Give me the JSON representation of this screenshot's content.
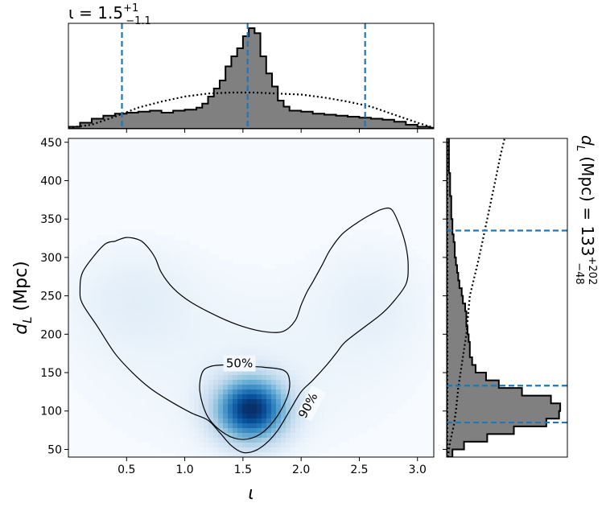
{
  "chart_data": [
    {
      "panel": "joint",
      "type": "heatmap",
      "xlabel": "ι",
      "ylabel_main": "d",
      "ylabel_sub": "L",
      "ylabel_unit": " (Mpc)",
      "xlim": [
        0.0,
        3.14
      ],
      "ylim": [
        40,
        455
      ],
      "xticks": [
        0.5,
        1.0,
        1.5,
        2.0,
        2.5,
        3.0
      ],
      "xticklabels": [
        "0.5",
        "1.0",
        "1.5",
        "2.0",
        "2.5",
        "3.0"
      ],
      "yticks": [
        50,
        100,
        150,
        200,
        250,
        300,
        350,
        400,
        450
      ],
      "yticklabels": [
        "50",
        "100",
        "150",
        "200",
        "250",
        "300",
        "350",
        "400",
        "450"
      ],
      "colormap": "Blues",
      "density_peaks": [
        {
          "x": 1.57,
          "y": 102,
          "weight": 1.0
        },
        {
          "x": 0.55,
          "y": 235,
          "weight": 0.07
        },
        {
          "x": 2.6,
          "y": 235,
          "weight": 0.07
        }
      ],
      "contours": [
        {
          "label": "50%",
          "label_pos": [
            1.47,
            162
          ],
          "label_angle": 0,
          "points": [
            [
              1.32,
              160
            ],
            [
              1.55,
              158
            ],
            [
              1.68,
              157
            ],
            [
              1.85,
              153
            ],
            [
              1.9,
              140
            ],
            [
              1.88,
              118
            ],
            [
              1.78,
              90
            ],
            [
              1.65,
              70
            ],
            [
              1.5,
              63
            ],
            [
              1.35,
              70
            ],
            [
              1.2,
              92
            ],
            [
              1.13,
              125
            ],
            [
              1.15,
              150
            ],
            [
              1.22,
              158
            ],
            [
              1.32,
              160
            ]
          ]
        },
        {
          "label": "90%",
          "label_pos": [
            2.09,
            110
          ],
          "label_angle": -62,
          "points": [
            [
              0.4,
              321
            ],
            [
              0.5,
              326
            ],
            [
              0.62,
              322
            ],
            [
              0.7,
              310
            ],
            [
              0.75,
              298
            ],
            [
              0.8,
              280
            ],
            [
              0.9,
              260
            ],
            [
              1.05,
              242
            ],
            [
              1.3,
              222
            ],
            [
              1.5,
              210
            ],
            [
              1.7,
              203
            ],
            [
              1.85,
              204
            ],
            [
              1.95,
              218
            ],
            [
              2.0,
              238
            ],
            [
              2.05,
              255
            ],
            [
              2.1,
              268
            ],
            [
              2.18,
              290
            ],
            [
              2.25,
              310
            ],
            [
              2.35,
              330
            ],
            [
              2.48,
              345
            ],
            [
              2.6,
              356
            ],
            [
              2.7,
              363
            ],
            [
              2.78,
              362
            ],
            [
              2.85,
              340
            ],
            [
              2.9,
              315
            ],
            [
              2.92,
              290
            ],
            [
              2.9,
              265
            ],
            [
              2.78,
              240
            ],
            [
              2.68,
              225
            ],
            [
              2.55,
              210
            ],
            [
              2.38,
              190
            ],
            [
              2.3,
              175
            ],
            [
              2.22,
              160
            ],
            [
              2.1,
              140
            ],
            [
              2.0,
              125
            ],
            [
              1.9,
              100
            ],
            [
              1.8,
              75
            ],
            [
              1.7,
              58
            ],
            [
              1.6,
              48
            ],
            [
              1.5,
              46
            ],
            [
              1.4,
              55
            ],
            [
              1.3,
              72
            ],
            [
              1.2,
              88
            ],
            [
              1.05,
              98
            ],
            [
              0.85,
              115
            ],
            [
              0.7,
              130
            ],
            [
              0.55,
              150
            ],
            [
              0.4,
              175
            ],
            [
              0.25,
              210
            ],
            [
              0.12,
              240
            ],
            [
              0.1,
              258
            ],
            [
              0.12,
              280
            ],
            [
              0.22,
              302
            ],
            [
              0.32,
              318
            ],
            [
              0.4,
              321
            ]
          ]
        }
      ]
    },
    {
      "panel": "top-marginal",
      "type": "histogram",
      "title_main": "ι = 1.5",
      "title_sup": "+1",
      "title_sub": "−1.1",
      "xlim": [
        0.0,
        3.14
      ],
      "ylim": [
        0,
        1.0
      ],
      "bin_edges": [
        0.0,
        0.1,
        0.2,
        0.3,
        0.4,
        0.5,
        0.6,
        0.7,
        0.8,
        0.9,
        1.0,
        1.1,
        1.15,
        1.2,
        1.25,
        1.3,
        1.35,
        1.4,
        1.45,
        1.5,
        1.55,
        1.6,
        1.65,
        1.7,
        1.75,
        1.8,
        1.85,
        1.9,
        2.0,
        2.1,
        2.2,
        2.3,
        2.4,
        2.5,
        2.6,
        2.7,
        2.8,
        2.9,
        3.0,
        3.1,
        3.14
      ],
      "counts": [
        0.02,
        0.06,
        0.1,
        0.13,
        0.15,
        0.16,
        0.17,
        0.18,
        0.16,
        0.18,
        0.19,
        0.21,
        0.25,
        0.32,
        0.4,
        0.48,
        0.62,
        0.72,
        0.8,
        0.92,
        1.0,
        0.95,
        0.72,
        0.55,
        0.42,
        0.28,
        0.22,
        0.18,
        0.17,
        0.15,
        0.14,
        0.13,
        0.12,
        0.11,
        0.1,
        0.09,
        0.07,
        0.04,
        0.02,
        0.01
      ],
      "prior_dotted": [
        [
          0.0,
          0.01
        ],
        [
          0.2,
          0.04
        ],
        [
          0.4,
          0.12
        ],
        [
          0.6,
          0.21
        ],
        [
          0.8,
          0.27
        ],
        [
          1.0,
          0.32
        ],
        [
          1.2,
          0.35
        ],
        [
          1.4,
          0.36
        ],
        [
          1.6,
          0.36
        ],
        [
          1.8,
          0.35
        ],
        [
          2.0,
          0.34
        ],
        [
          2.2,
          0.31
        ],
        [
          2.4,
          0.27
        ],
        [
          2.6,
          0.22
        ],
        [
          2.8,
          0.14
        ],
        [
          3.0,
          0.06
        ],
        [
          3.14,
          0.01
        ]
      ],
      "quantiles": [
        0.46,
        1.54,
        2.55
      ],
      "quantile_color": "#1f77b4",
      "fill_color": "#808080"
    },
    {
      "panel": "right-marginal",
      "type": "histogram",
      "orientation": "horizontal",
      "title_main": "d",
      "title_sub": "L",
      "title_rest": " (Mpc) = 133",
      "title_sup2": "+202",
      "title_sub2": "−48",
      "ylim": [
        40,
        455
      ],
      "xlim": [
        0,
        1.0
      ],
      "bin_edges": [
        40,
        50,
        60,
        70,
        80,
        90,
        100,
        110,
        120,
        130,
        140,
        150,
        160,
        170,
        180,
        190,
        200,
        210,
        220,
        230,
        240,
        250,
        260,
        270,
        280,
        290,
        300,
        310,
        320,
        330,
        340,
        350,
        360,
        370,
        380,
        390,
        400,
        410,
        420,
        430,
        440,
        450,
        455
      ],
      "counts": [
        0.05,
        0.15,
        0.35,
        0.58,
        0.86,
        0.97,
        0.98,
        0.9,
        0.65,
        0.45,
        0.34,
        0.25,
        0.22,
        0.2,
        0.2,
        0.19,
        0.18,
        0.17,
        0.17,
        0.16,
        0.14,
        0.13,
        0.11,
        0.1,
        0.09,
        0.08,
        0.07,
        0.07,
        0.06,
        0.05,
        0.05,
        0.04,
        0.04,
        0.04,
        0.03,
        0.03,
        0.03,
        0.02,
        0.02,
        0.02,
        0.02,
        0.02
      ],
      "prior_dotted": [
        [
          40,
          0.01
        ],
        [
          60,
          0.03
        ],
        [
          80,
          0.06
        ],
        [
          100,
          0.08
        ],
        [
          130,
          0.1
        ],
        [
          160,
          0.13
        ],
        [
          200,
          0.17
        ],
        [
          250,
          0.2
        ],
        [
          300,
          0.28
        ],
        [
          350,
          0.35
        ],
        [
          400,
          0.42
        ],
        [
          430,
          0.46
        ],
        [
          455,
          0.5
        ]
      ],
      "quantiles": [
        85,
        133,
        335
      ],
      "quantile_color": "#1f77b4",
      "fill_color": "#808080"
    }
  ]
}
